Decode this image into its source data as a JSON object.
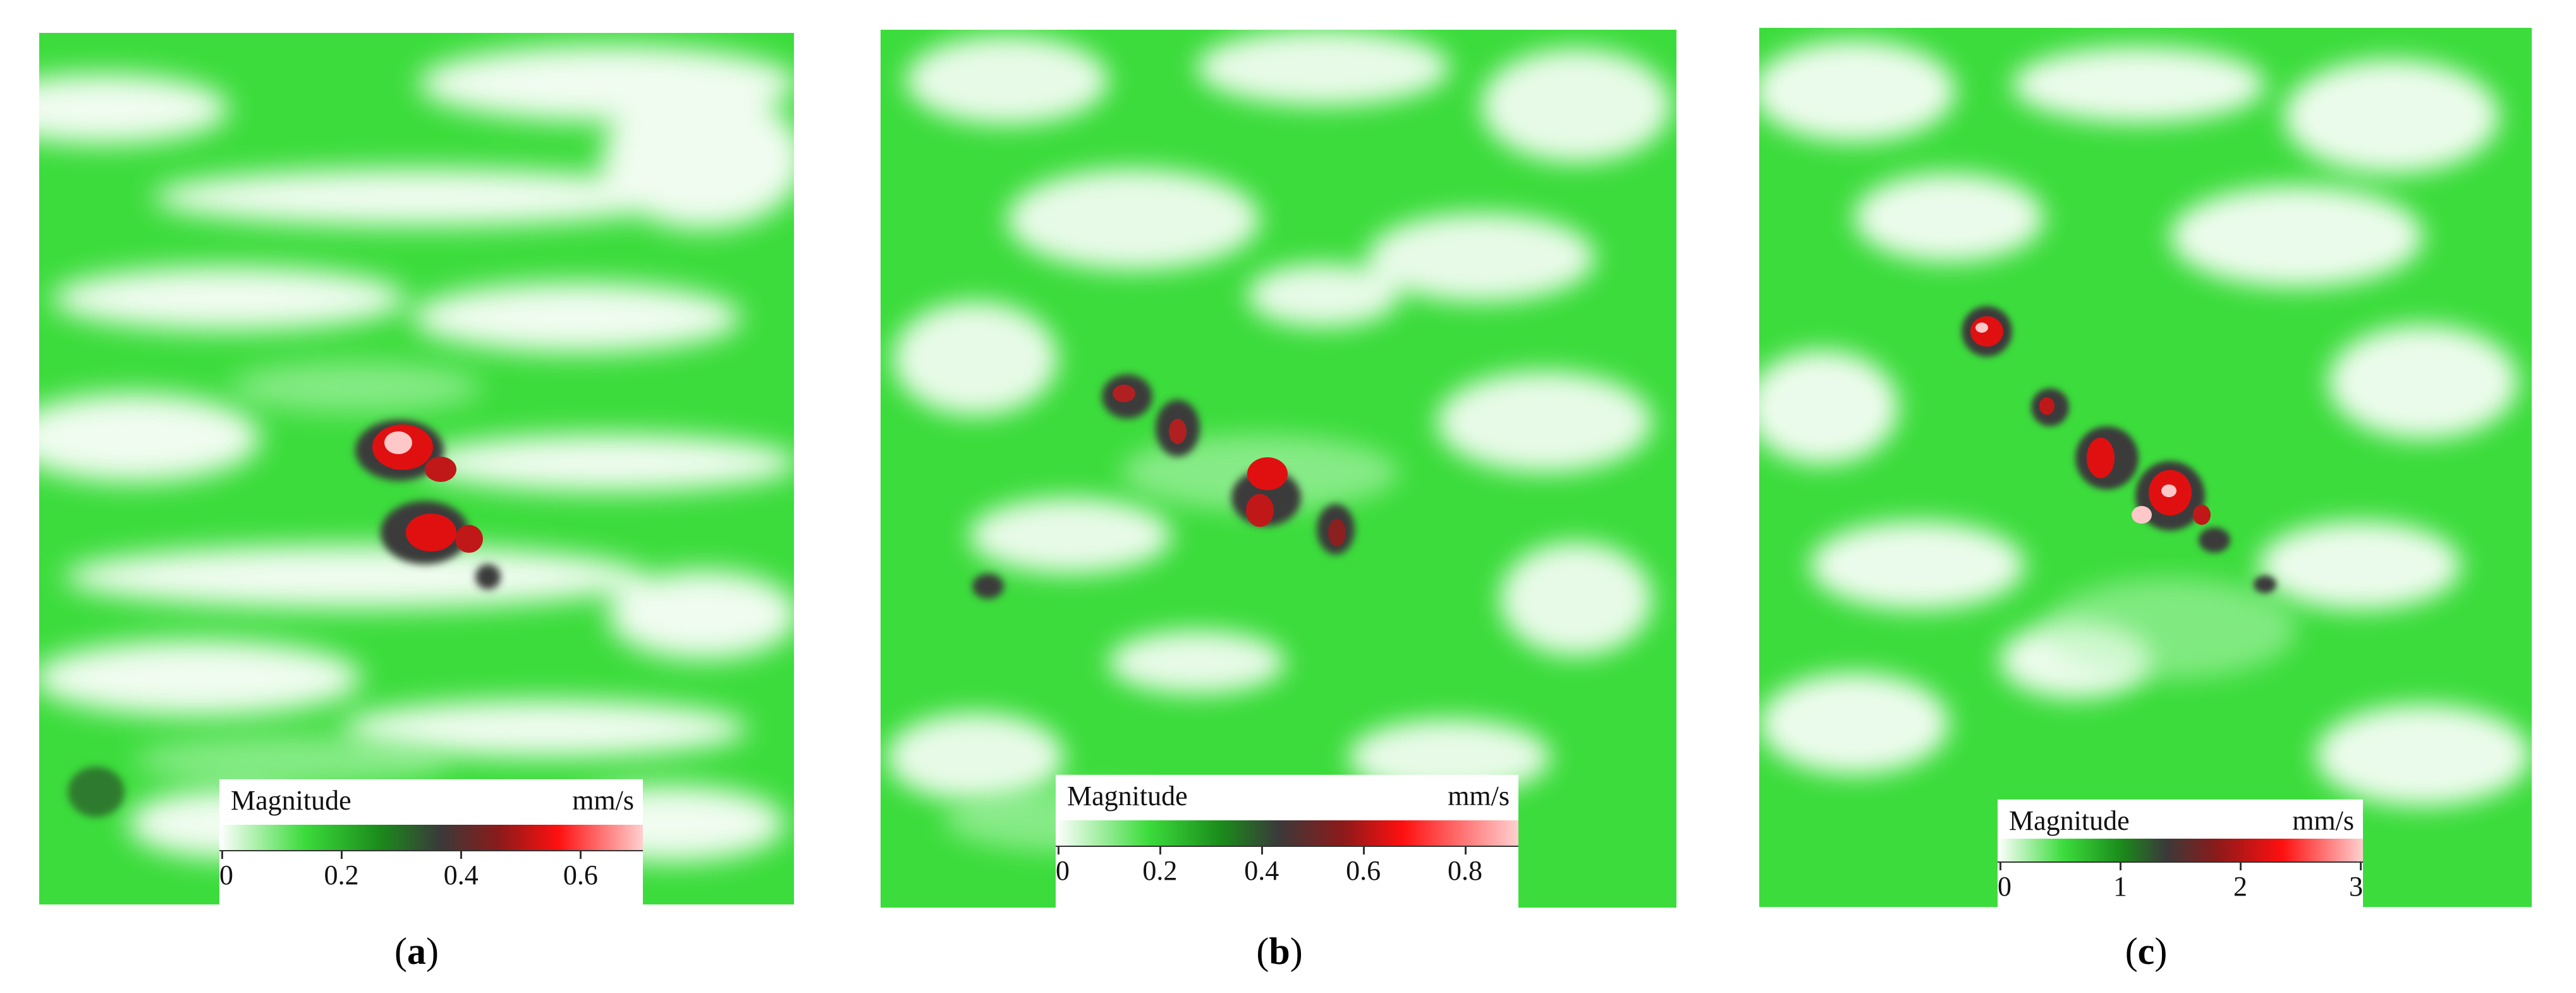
{
  "panels": [
    {
      "caption_open": "(",
      "caption_letter": "a",
      "caption_close": ")",
      "legend": {
        "title": "Magnitude",
        "unit": "mm/s",
        "ticks": [
          "0",
          "0.2",
          "0.4",
          "0.6"
        ],
        "tick_values": [
          0,
          0.2,
          0.4,
          0.6
        ],
        "max": 0.7
      }
    },
    {
      "caption_open": "(",
      "caption_letter": "b",
      "caption_close": ")",
      "legend": {
        "title": "Magnitude",
        "unit": "mm/s",
        "ticks": [
          "0",
          "0.2",
          "0.4",
          "0.6",
          "0.8"
        ],
        "tick_values": [
          0,
          0.2,
          0.4,
          0.6,
          0.8
        ],
        "max": 0.9
      }
    },
    {
      "caption_open": "(",
      "caption_letter": "c",
      "caption_close": ")",
      "legend": {
        "title": "Magnitude",
        "unit": "mm/s",
        "ticks": [
          "0",
          "1",
          "2",
          "3"
        ],
        "tick_values": [
          0,
          1,
          2,
          3
        ],
        "max": 3
      }
    }
  ],
  "colors": {
    "field_green": "#3cdc3c",
    "light_green": "#b8f5b8",
    "dark": "#3a3a3a",
    "red": "#e01010",
    "pink": "#ffc8c8"
  }
}
